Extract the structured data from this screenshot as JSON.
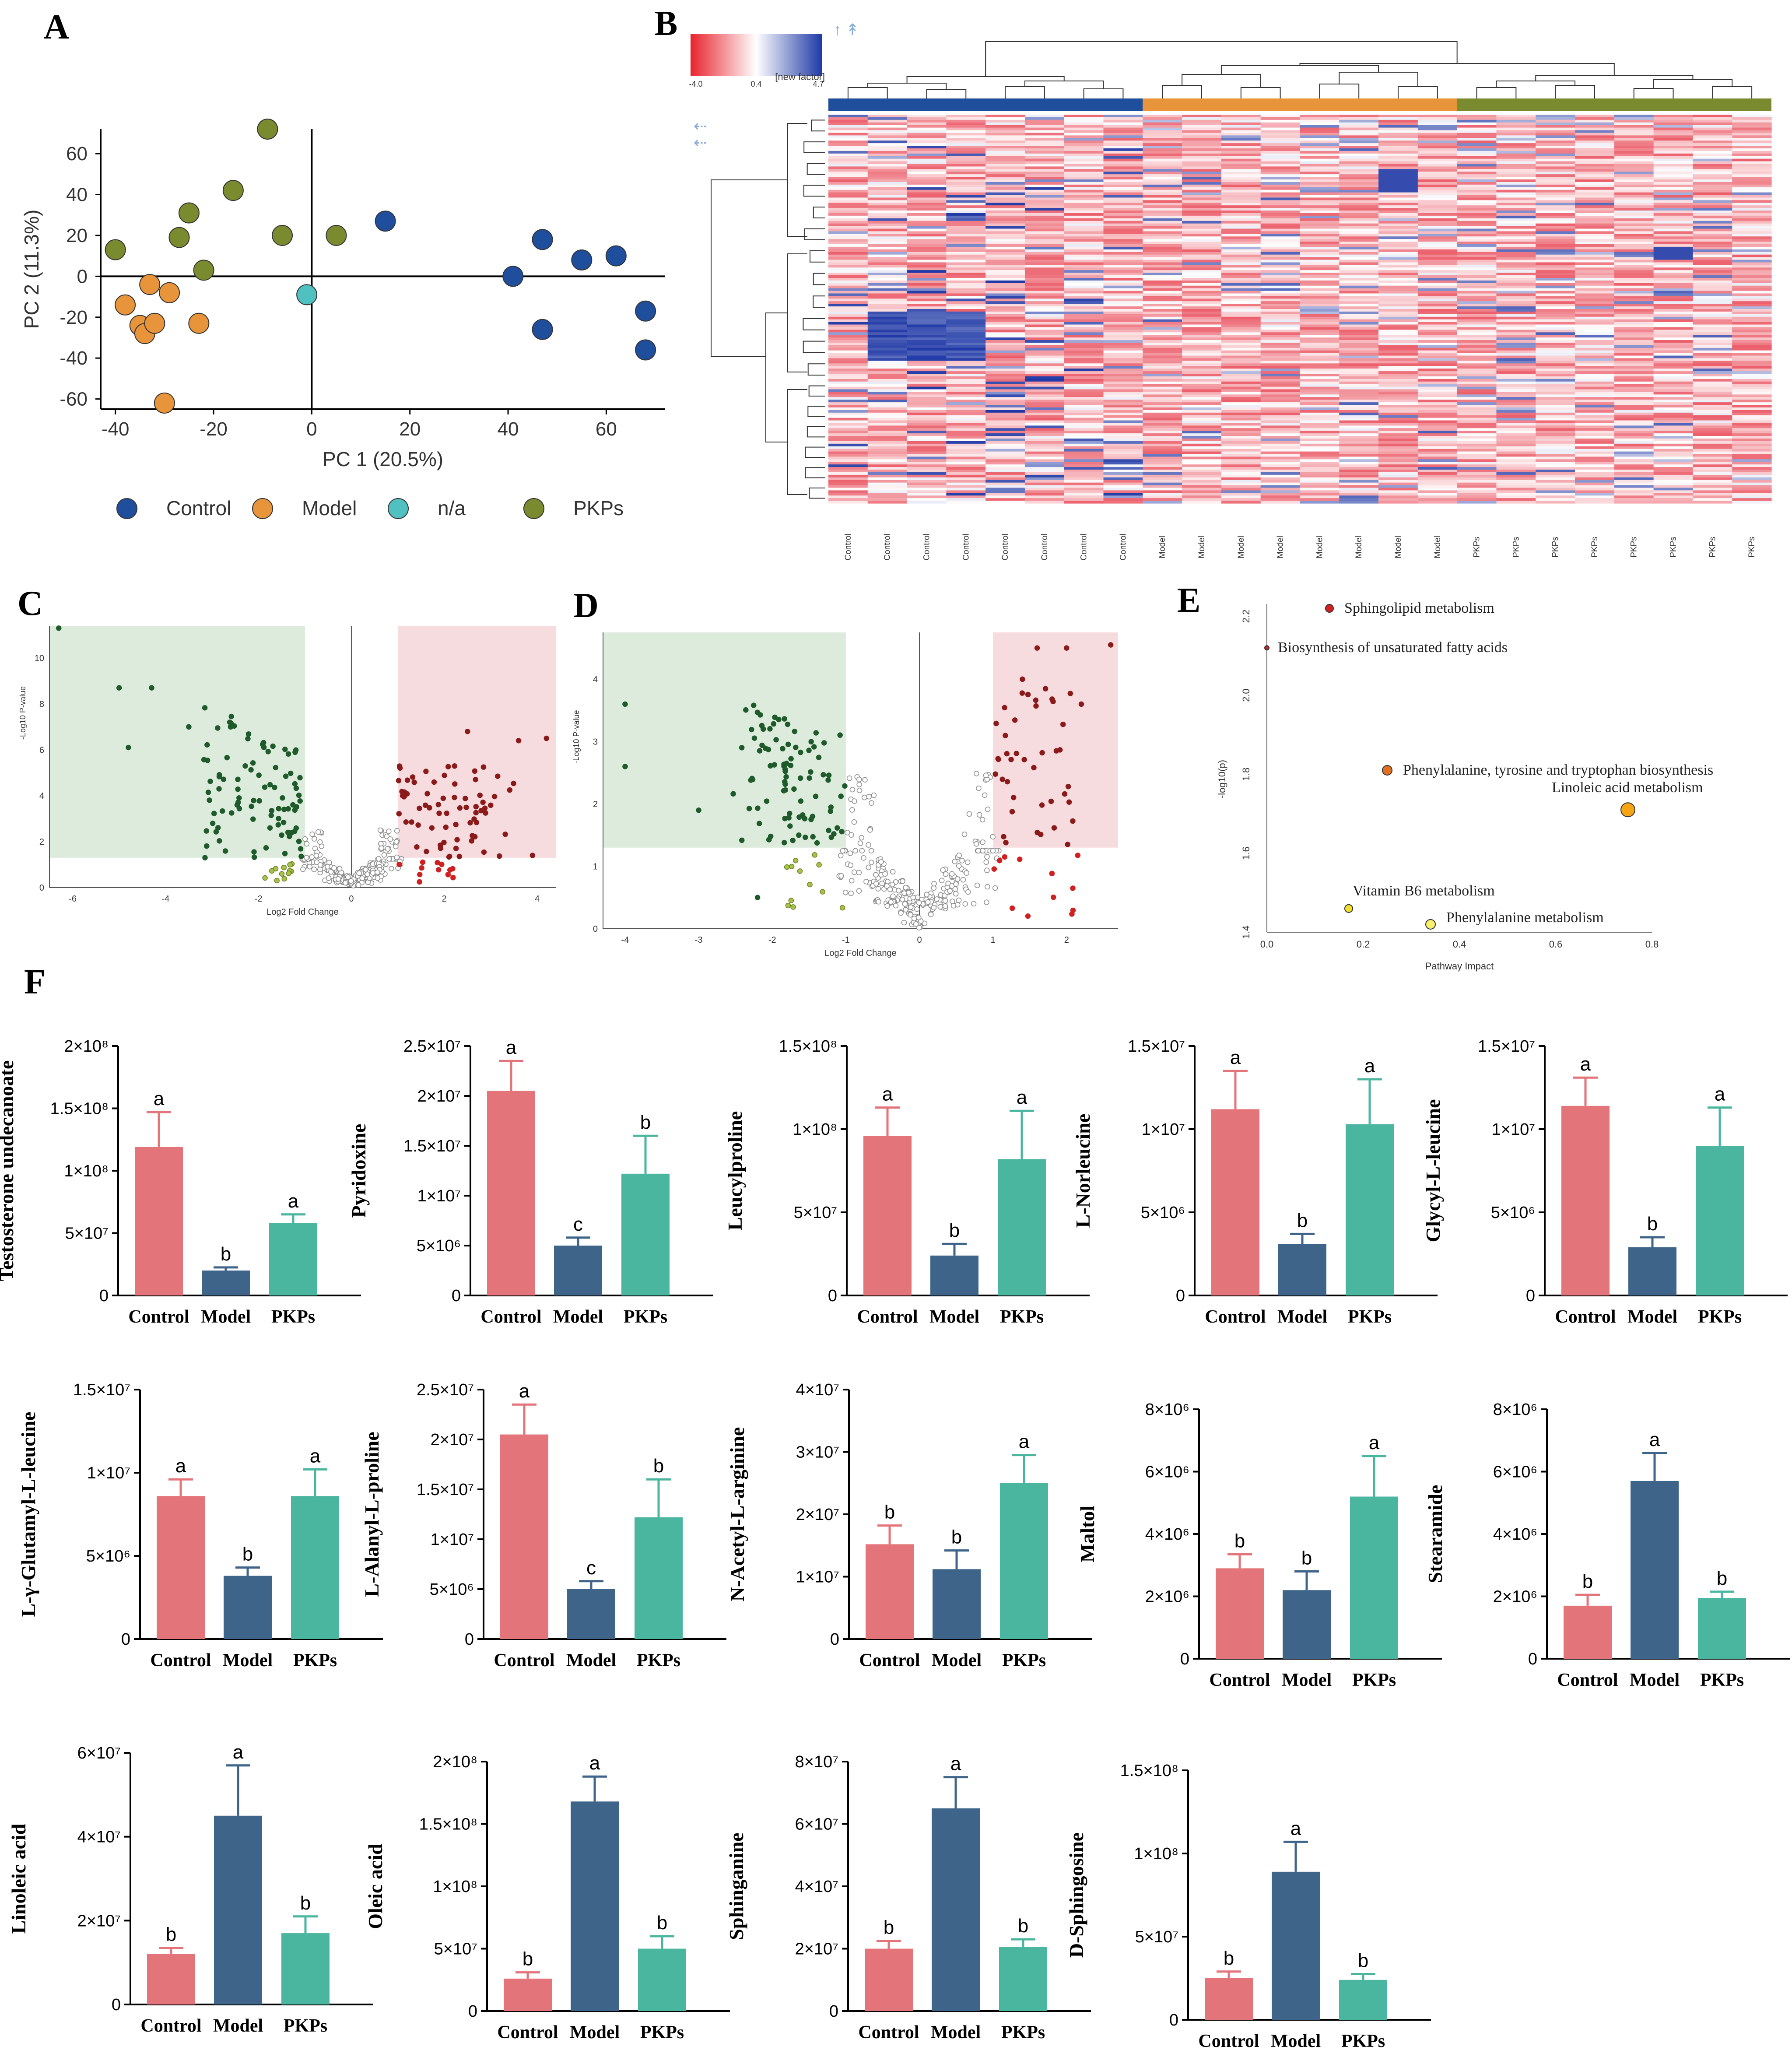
{
  "panel_labels": {
    "A": "A",
    "B": "B",
    "C": "C",
    "D": "D",
    "E": "E",
    "F": "F"
  },
  "colors": {
    "control": "#1f4e9c",
    "model": "#e8943a",
    "na": "#4fc1c0",
    "pkps": "#7a8a2e",
    "bar_control": "#e37479",
    "bar_model": "#3e6489",
    "bar_pkps": "#4bb6a0",
    "heat_low": "#e8232d",
    "heat_mid": "#ffffff",
    "heat_high": "#1f3aa6",
    "volcano_down": "#1e5a2a",
    "volcano_up": "#8b1a1a",
    "volcano_ns": "#9a9a9a",
    "volcano_weak_down": "#a7c24a",
    "volcano_weak_up": "#d02020"
  },
  "chart_data": [
    {
      "id": "A",
      "type": "scatter",
      "title": "",
      "xlabel": "PC 1 (20.5%)",
      "ylabel": "PC 2 (11.3%)",
      "xlim": [
        -43,
        72
      ],
      "ylim": [
        -65,
        72
      ],
      "xticks": [
        -40,
        -20,
        0,
        20,
        40,
        60
      ],
      "yticks": [
        -60,
        -40,
        -20,
        0,
        20,
        40,
        60
      ],
      "legend": [
        "Control",
        "Model",
        "n/a",
        "PKPs"
      ],
      "series": [
        {
          "name": "Control",
          "points": [
            [
              15,
              27
            ],
            [
              41,
              0
            ],
            [
              47,
              18
            ],
            [
              47,
              -26
            ],
            [
              55,
              8
            ],
            [
              62,
              10
            ],
            [
              68,
              -17
            ],
            [
              68,
              -36
            ]
          ]
        },
        {
          "name": "Model",
          "points": [
            [
              -38,
              -14
            ],
            [
              -35,
              -24
            ],
            [
              -34,
              -28
            ],
            [
              -33,
              -4
            ],
            [
              -32,
              -23
            ],
            [
              -30,
              -62
            ],
            [
              -29,
              -8
            ],
            [
              -23,
              -23
            ]
          ]
        },
        {
          "name": "n/a",
          "points": [
            [
              -1,
              -9
            ]
          ]
        },
        {
          "name": "PKPs",
          "points": [
            [
              -40,
              13
            ],
            [
              -27,
              19
            ],
            [
              -25,
              31
            ],
            [
              -22,
              3
            ],
            [
              -16,
              42
            ],
            [
              -9,
              72
            ],
            [
              -6,
              20
            ],
            [
              5,
              20
            ]
          ]
        }
      ]
    },
    {
      "id": "B",
      "type": "heatmap",
      "scale_ticks": [
        "-4.0",
        "0.4",
        "4.7"
      ],
      "factor_label": "[new factor]",
      "groups": [
        "Control",
        "Model",
        "PKPs"
      ],
      "columns": [
        "Control",
        "Control",
        "Control",
        "Control",
        "Control",
        "Control",
        "Control",
        "Control",
        "Model",
        "Model",
        "Model",
        "Model",
        "Model",
        "Model",
        "Model",
        "Model",
        "PKPs",
        "PKPs",
        "PKPs",
        "PKPs",
        "PKPs",
        "PKPs",
        "PKPs",
        "PKPs"
      ],
      "rows": 150
    },
    {
      "id": "C",
      "type": "scatter",
      "title": "",
      "xlabel": "Log2 Fold Change",
      "ylabel": "-Log10 P-value",
      "xlim": [
        -6.5,
        4.4
      ],
      "ylim": [
        0,
        11.4
      ],
      "xticks": [
        -6,
        -4,
        -2,
        0,
        2,
        4
      ],
      "yticks": [
        0,
        2,
        4,
        6,
        8,
        10
      ],
      "down_region": {
        "x": [
          -6.5,
          -1
        ],
        "y": [
          1.3,
          11.4
        ]
      },
      "up_region": {
        "x": [
          1,
          4.4
        ],
        "y": [
          1.3,
          11.4
        ]
      },
      "highlighted_points": [
        [
          -6.3,
          11.3
        ],
        [
          -5.0,
          8.7
        ],
        [
          -4.3,
          8.7
        ],
        [
          -4.8,
          6.1
        ],
        [
          -3.5,
          7.0
        ],
        [
          -2.6,
          7.0
        ],
        [
          3.6,
          6.4
        ],
        [
          4.2,
          6.5
        ],
        [
          3.9,
          1.4
        ],
        [
          2.5,
          6.8
        ]
      ]
    },
    {
      "id": "D",
      "type": "scatter",
      "title": "",
      "xlabel": "Log2 Fold Change",
      "ylabel": "-Log10 P-value",
      "xlim": [
        -4.3,
        2.7
      ],
      "ylim": [
        0,
        4.75
      ],
      "xticks": [
        -4,
        -3,
        -2,
        -1,
        0,
        1,
        2
      ],
      "yticks": [
        0,
        1,
        2,
        3,
        4
      ],
      "down_region": {
        "x": [
          -4.3,
          -1
        ],
        "y": [
          1.3,
          4.75
        ]
      },
      "up_region": {
        "x": [
          1,
          2.7
        ],
        "y": [
          1.3,
          4.75
        ]
      },
      "highlighted_points": [
        [
          -4.0,
          3.6
        ],
        [
          -4.0,
          2.6
        ],
        [
          -3.0,
          1.9
        ],
        [
          -2.2,
          0.5
        ],
        [
          1.6,
          4.5
        ],
        [
          2.0,
          4.5
        ],
        [
          2.6,
          4.55
        ],
        [
          1.4,
          4.0
        ],
        [
          2.2,
          3.6
        ]
      ]
    },
    {
      "id": "E",
      "type": "scatter",
      "title": "",
      "xlabel": "Pathway Impact",
      "ylabel": "-log10(p)",
      "xlim": [
        0,
        0.8
      ],
      "ylim": [
        1.4,
        2.22
      ],
      "xticks": [
        "0.0",
        "0.2",
        "0.4",
        "0.6",
        "0.8"
      ],
      "yticks": [
        "1.4",
        "1.6",
        "1.8",
        "2.0",
        "2.2"
      ],
      "points": [
        {
          "label": "Sphingolipid metabolism",
          "x": 0.13,
          "y": 2.22,
          "size": 9,
          "color": "#d32020"
        },
        {
          "label": "Biosynthesis of unsaturated fatty acids",
          "x": 0.0,
          "y": 2.12,
          "size": 5,
          "color": "#c62525"
        },
        {
          "label": "Phenylalanine, tyrosine and tryptophan biosynthesis",
          "x": 0.25,
          "y": 1.81,
          "size": 11,
          "color": "#e07020"
        },
        {
          "label": "Linoleic acid metabolism",
          "x": 0.75,
          "y": 1.71,
          "size": 16,
          "color": "#f4a414"
        },
        {
          "label": "Vitamin B6 metabolism",
          "x": 0.17,
          "y": 1.46,
          "size": 9,
          "color": "#f2e02a"
        },
        {
          "label": "Phenylalanine metabolism",
          "x": 0.34,
          "y": 1.42,
          "size": 11,
          "color": "#f7f06a"
        }
      ]
    },
    {
      "id": "F1",
      "type": "bar",
      "ylabel": "Testosterone undecanoate",
      "categories": [
        "Control",
        "Model",
        "PKPs"
      ],
      "values": [
        119000000.0,
        20000000.0,
        58000000.0
      ],
      "errors": [
        28000000.0,
        2500000.0,
        7000000.0
      ],
      "letters": [
        "a",
        "b",
        "a"
      ],
      "ylim": [
        0,
        200000000.0
      ],
      "ytick_values": [
        0,
        50000000.0,
        100000000.0,
        150000000.0,
        200000000.0
      ],
      "ytick_labels": [
        "0",
        "5×10⁷",
        "1×10⁸",
        "1.5×10⁸",
        "2×10⁸"
      ]
    },
    {
      "id": "F2",
      "type": "bar",
      "ylabel": "Pyridoxine",
      "categories": [
        "Control",
        "Model",
        "PKPs"
      ],
      "values": [
        20500000.0,
        5000000.0,
        12200000.0
      ],
      "errors": [
        3000000.0,
        800000.0,
        3800000.0
      ],
      "letters": [
        "a",
        "c",
        "b"
      ],
      "ylim": [
        0,
        25000000.0
      ],
      "ytick_values": [
        0,
        5000000.0,
        10000000.0,
        15000000.0,
        20000000.0,
        25000000.0
      ],
      "ytick_labels": [
        "0",
        "5×10⁶",
        "1×10⁷",
        "1.5×10⁷",
        "2×10⁷",
        "2.5×10⁷"
      ]
    },
    {
      "id": "F3",
      "type": "bar",
      "ylabel": "Leucylproline",
      "categories": [
        "Control",
        "Model",
        "PKPs"
      ],
      "values": [
        96000000.0,
        24000000.0,
        82000000.0
      ],
      "errors": [
        17000000.0,
        7000000.0,
        29000000.0
      ],
      "letters": [
        "a",
        "b",
        "a"
      ],
      "ylim": [
        0,
        150000000.0
      ],
      "ytick_values": [
        0,
        50000000.0,
        100000000.0,
        150000000.0
      ],
      "ytick_labels": [
        "0",
        "5×10⁷",
        "1×10⁸",
        "1.5×10⁸"
      ]
    },
    {
      "id": "F4",
      "type": "bar",
      "ylabel": "L-Norleucine",
      "categories": [
        "Control",
        "Model",
        "PKPs"
      ],
      "values": [
        11200000.0,
        3100000.0,
        10300000.0
      ],
      "errors": [
        2300000.0,
        600000.0,
        2700000.0
      ],
      "letters": [
        "a",
        "b",
        "a"
      ],
      "ylim": [
        0,
        15000000.0
      ],
      "ytick_values": [
        0,
        5000000.0,
        10000000.0,
        15000000.0
      ],
      "ytick_labels": [
        "0",
        "5×10⁶",
        "1×10⁷",
        "1.5×10⁷"
      ]
    },
    {
      "id": "F5",
      "type": "bar",
      "ylabel": "Glycyl-L-leucine",
      "categories": [
        "Control",
        "Model",
        "PKPs"
      ],
      "values": [
        11400000.0,
        2900000.0,
        9000000.0
      ],
      "errors": [
        1700000.0,
        600000.0,
        2300000.0
      ],
      "letters": [
        "a",
        "b",
        "a"
      ],
      "ylim": [
        0,
        15000000.0
      ],
      "ytick_values": [
        0,
        5000000.0,
        10000000.0,
        15000000.0
      ],
      "ytick_labels": [
        "0",
        "5×10⁶",
        "1×10⁷",
        "1.5×10⁷"
      ]
    },
    {
      "id": "F6",
      "type": "bar",
      "ylabel": "L-γ-Glutamyl-L-leucine",
      "categories": [
        "Control",
        "Model",
        "PKPs"
      ],
      "values": [
        8600000.0,
        3800000.0,
        8600000.0
      ],
      "errors": [
        1000000.0,
        500000.0,
        1600000.0
      ],
      "letters": [
        "a",
        "b",
        "a"
      ],
      "ylim": [
        0,
        15000000.0
      ],
      "ytick_values": [
        0,
        5000000.0,
        10000000.0,
        15000000.0
      ],
      "ytick_labels": [
        "0",
        "5×10⁶",
        "1×10⁷",
        "1.5×10⁷"
      ]
    },
    {
      "id": "F7",
      "type": "bar",
      "ylabel": "L-Alanyl-L-proline",
      "categories": [
        "Control",
        "Model",
        "PKPs"
      ],
      "values": [
        20500000.0,
        5000000.0,
        12200000.0
      ],
      "errors": [
        3000000.0,
        800000.0,
        3800000.0
      ],
      "letters": [
        "a",
        "c",
        "b"
      ],
      "ylim": [
        0,
        25000000.0
      ],
      "ytick_values": [
        0,
        5000000.0,
        10000000.0,
        15000000.0,
        20000000.0,
        25000000.0
      ],
      "ytick_labels": [
        "0",
        "5×10⁶",
        "1×10⁷",
        "1.5×10⁷",
        "2×10⁷",
        "2.5×10⁷"
      ]
    },
    {
      "id": "F8",
      "type": "bar",
      "ylabel": "N-Acetyl-L-arginine",
      "categories": [
        "Control",
        "Model",
        "PKPs"
      ],
      "values": [
        15200000.0,
        11200000.0,
        25000000.0
      ],
      "errors": [
        3000000.0,
        3000000.0,
        4500000.0
      ],
      "letters": [
        "b",
        "b",
        "a"
      ],
      "ylim": [
        0,
        40000000.0
      ],
      "ytick_values": [
        0,
        10000000.0,
        20000000.0,
        30000000.0,
        40000000.0
      ],
      "ytick_labels": [
        "0",
        "1×10⁷",
        "2×10⁷",
        "3×10⁷",
        "4×10⁷"
      ]
    },
    {
      "id": "F9",
      "type": "bar",
      "ylabel": "Maltol",
      "categories": [
        "Control",
        "Model",
        "PKPs"
      ],
      "values": [
        2900000.0,
        2200000.0,
        5200000.0
      ],
      "errors": [
        450000.0,
        600000.0,
        1300000.0
      ],
      "letters": [
        "b",
        "b",
        "a"
      ],
      "ylim": [
        0,
        8000000.0
      ],
      "ytick_values": [
        0,
        2000000.0,
        4000000.0,
        6000000.0,
        8000000.0
      ],
      "ytick_labels": [
        "0",
        "2×10⁶",
        "4×10⁶",
        "6×10⁶",
        "8×10⁶"
      ]
    },
    {
      "id": "F10",
      "type": "bar",
      "ylabel": "Stearamide",
      "categories": [
        "Control",
        "Model",
        "PKPs"
      ],
      "values": [
        1700000.0,
        5700000.0,
        1950000.0
      ],
      "errors": [
        350000.0,
        900000.0,
        200000.0
      ],
      "letters": [
        "b",
        "a",
        "b"
      ],
      "ylim": [
        0,
        8000000.0
      ],
      "ytick_values": [
        0,
        2000000.0,
        4000000.0,
        6000000.0,
        8000000.0
      ],
      "ytick_labels": [
        "0",
        "2×10⁶",
        "4×10⁶",
        "6×10⁶",
        "8×10⁶"
      ]
    },
    {
      "id": "F11",
      "type": "bar",
      "ylabel": "Linoleic acid",
      "categories": [
        "Control",
        "Model",
        "PKPs"
      ],
      "values": [
        12000000.0,
        45000000.0,
        17000000.0
      ],
      "errors": [
        1500000.0,
        12000000.0,
        4000000.0
      ],
      "letters": [
        "b",
        "a",
        "b"
      ],
      "ylim": [
        0,
        60000000.0
      ],
      "ytick_values": [
        0,
        20000000.0,
        40000000.0,
        60000000.0
      ],
      "ytick_labels": [
        "0",
        "2×10⁷",
        "4×10⁷",
        "6×10⁷"
      ]
    },
    {
      "id": "F12",
      "type": "bar",
      "ylabel": "Oleic acid",
      "categories": [
        "Control",
        "Model",
        "PKPs"
      ],
      "values": [
        26000000.0,
        168000000.0,
        50000000.0
      ],
      "errors": [
        5000000.0,
        20000000.0,
        10000000.0
      ],
      "letters": [
        "b",
        "a",
        "b"
      ],
      "ylim": [
        0,
        200000000.0
      ],
      "ytick_values": [
        0,
        50000000.0,
        100000000.0,
        150000000.0,
        200000000.0
      ],
      "ytick_labels": [
        "0",
        "5×10⁷",
        "1×10⁸",
        "1.5×10⁸",
        "2×10⁸"
      ]
    },
    {
      "id": "F13",
      "type": "bar",
      "ylabel": "Sphinganine",
      "categories": [
        "Control",
        "Model",
        "PKPs"
      ],
      "values": [
        20000000.0,
        65000000.0,
        20500000.0
      ],
      "errors": [
        2500000.0,
        10000000.0,
        2500000.0
      ],
      "letters": [
        "b",
        "a",
        "b"
      ],
      "ylim": [
        0,
        80000000.0
      ],
      "ytick_values": [
        0,
        20000000.0,
        40000000.0,
        60000000.0,
        80000000.0
      ],
      "ytick_labels": [
        "0",
        "2×10⁷",
        "4×10⁷",
        "6×10⁷",
        "8×10⁷"
      ]
    },
    {
      "id": "F14",
      "type": "bar",
      "ylabel": "D-Sphingosine",
      "categories": [
        "Control",
        "Model",
        "PKPs"
      ],
      "values": [
        25000000.0,
        89000000.0,
        24000000.0
      ],
      "errors": [
        4000000.0,
        18000000.0,
        3500000.0
      ],
      "letters": [
        "b",
        "a",
        "b"
      ],
      "ylim": [
        0,
        150000000.0
      ],
      "ytick_values": [
        0,
        50000000.0,
        100000000.0,
        150000000.0
      ],
      "ytick_labels": [
        "0",
        "5×10⁷",
        "1×10⁸",
        "1.5×10⁸"
      ]
    }
  ]
}
